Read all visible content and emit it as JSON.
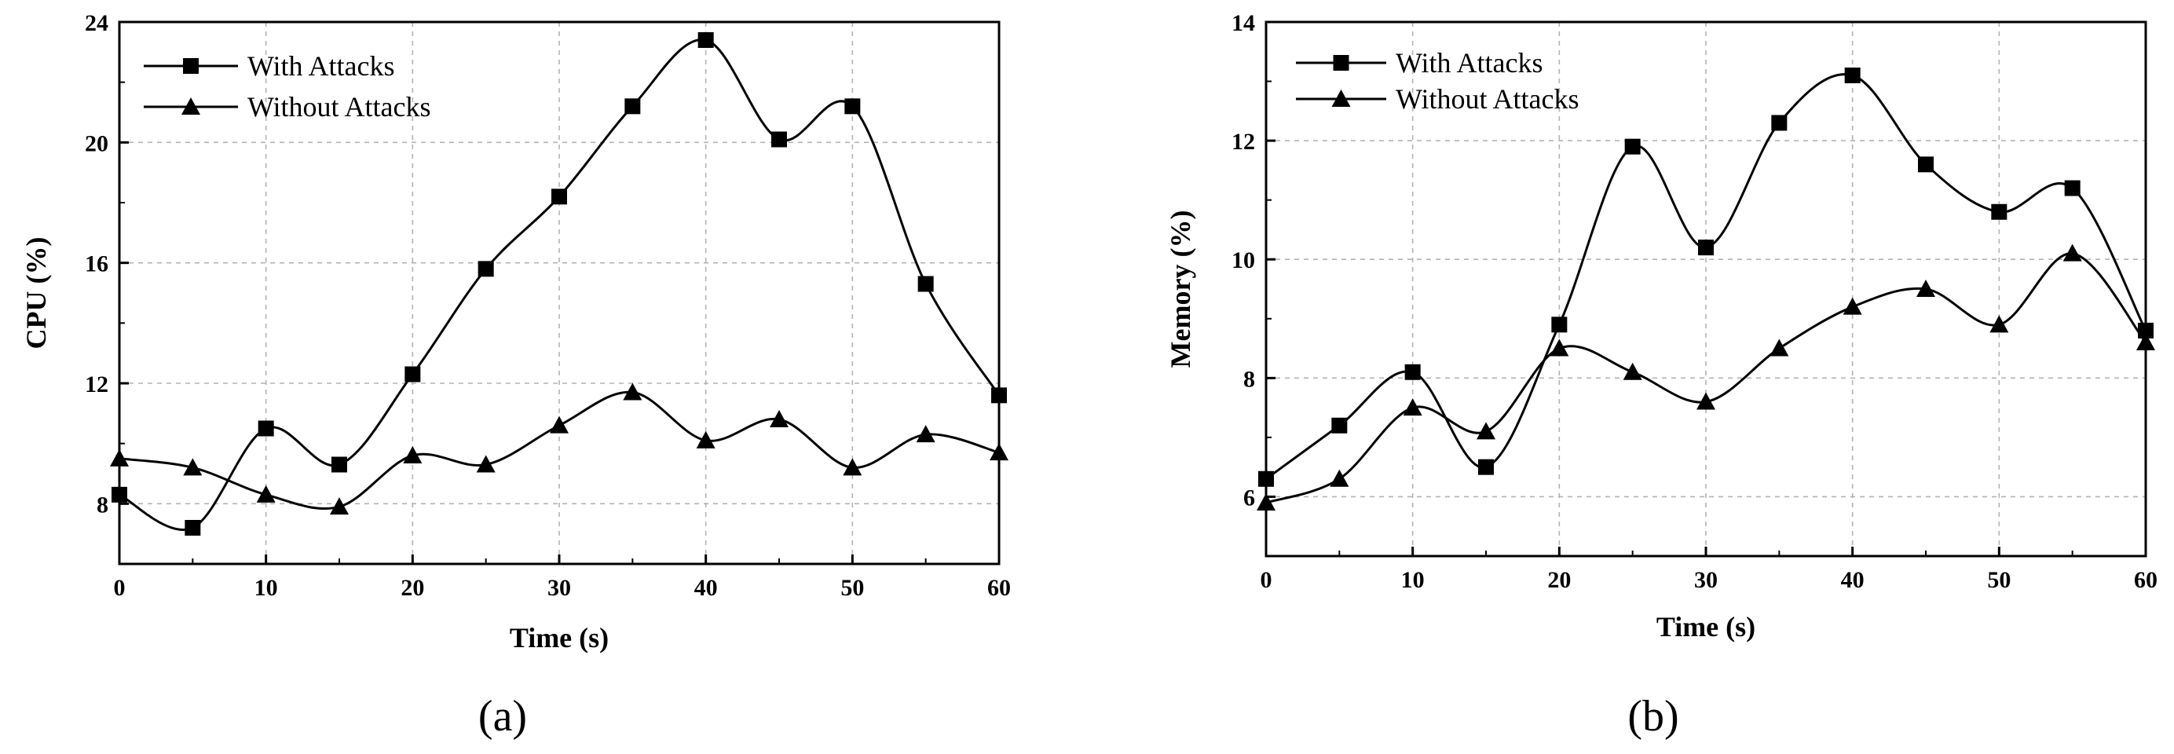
{
  "chart_data": [
    {
      "panel_label": "(a)",
      "type": "line",
      "xlabel": "Time (s)",
      "ylabel": "CPU (%)",
      "xlim": [
        0,
        60
      ],
      "ylim": [
        6,
        24
      ],
      "xticks": [
        0,
        10,
        20,
        30,
        40,
        50,
        60
      ],
      "yticks": [
        8,
        12,
        16,
        20,
        24
      ],
      "grid": true,
      "legend_position": "top-left",
      "x": [
        0,
        5,
        10,
        15,
        20,
        25,
        30,
        35,
        40,
        45,
        50,
        55,
        60
      ],
      "series": [
        {
          "name": "With Attacks",
          "marker": "square",
          "values": [
            8.3,
            7.2,
            10.5,
            9.3,
            12.3,
            15.8,
            18.2,
            21.2,
            23.4,
            20.1,
            21.2,
            15.3,
            11.6
          ]
        },
        {
          "name": "Without Attacks",
          "marker": "triangle",
          "values": [
            9.5,
            9.2,
            8.3,
            7.9,
            9.6,
            9.3,
            10.6,
            11.7,
            10.1,
            10.8,
            9.2,
            10.3,
            9.7
          ]
        }
      ]
    },
    {
      "panel_label": "(b)",
      "type": "line",
      "xlabel": "Time (s)",
      "ylabel": "Memory (%)",
      "xlim": [
        0,
        60
      ],
      "ylim": [
        5,
        14
      ],
      "xticks": [
        0,
        10,
        20,
        30,
        40,
        50,
        60
      ],
      "yticks": [
        6,
        8,
        10,
        12,
        14
      ],
      "grid": true,
      "legend_position": "top-left",
      "x": [
        0,
        5,
        10,
        15,
        20,
        25,
        30,
        35,
        40,
        45,
        50,
        55,
        60
      ],
      "series": [
        {
          "name": "With Attacks",
          "marker": "square",
          "values": [
            6.3,
            7.2,
            8.1,
            6.5,
            8.9,
            11.9,
            10.2,
            12.3,
            13.1,
            11.6,
            10.8,
            11.2,
            8.8
          ]
        },
        {
          "name": "Without Attacks",
          "marker": "triangle",
          "values": [
            5.9,
            6.3,
            7.5,
            7.1,
            8.5,
            8.1,
            7.6,
            8.5,
            9.2,
            9.5,
            8.9,
            10.1,
            8.6
          ]
        }
      ]
    }
  ]
}
